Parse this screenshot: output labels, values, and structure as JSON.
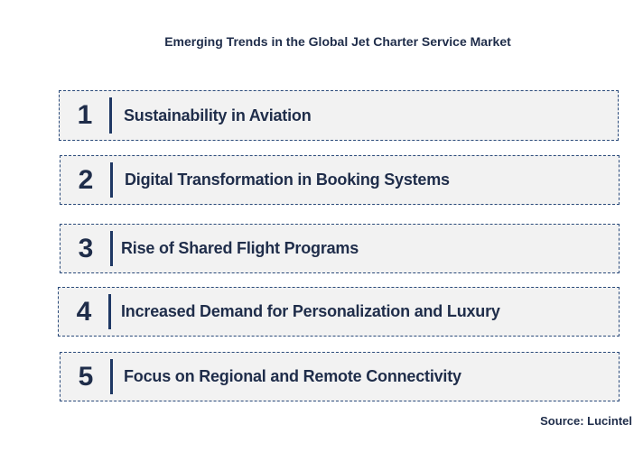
{
  "title": "Emerging Trends in the Global Jet Charter Service Market",
  "trends": [
    {
      "number": "1",
      "label": "Sustainability in Aviation"
    },
    {
      "number": "2",
      "label": "Digital Transformation in Booking Systems"
    },
    {
      "number": "3",
      "label": "Rise of Shared Flight Programs"
    },
    {
      "number": "4",
      "label": "Increased Demand for Personalization and Luxury"
    },
    {
      "number": "5",
      "label": "Focus on Regional and Remote Connectivity"
    }
  ],
  "source": "Source: Lucintel",
  "colors": {
    "text": "#1f2d4a",
    "box_background": "#f2f2f2",
    "box_border": "#2a4a7a",
    "divider": "#1f3864"
  }
}
